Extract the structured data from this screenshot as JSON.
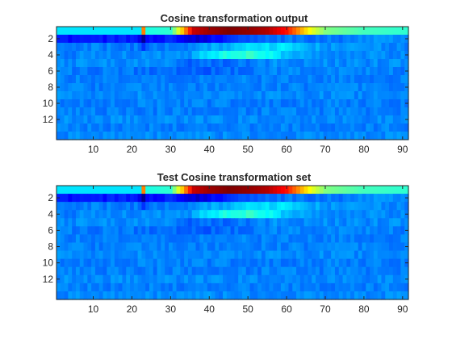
{
  "chart_data": [
    {
      "type": "heatmap",
      "title": "Cosine transformation output",
      "xlabel": "",
      "ylabel": "",
      "x_range": [
        1,
        91
      ],
      "y_range": [
        1,
        14
      ],
      "x_ticks": [
        10,
        20,
        30,
        40,
        50,
        60,
        70,
        80,
        90
      ],
      "y_ticks": [
        2,
        4,
        6,
        8,
        10,
        12
      ],
      "colormap": "jet",
      "row_values": [
        {
          "row": 1,
          "x": [
            1,
            22,
            23,
            24,
            30,
            36,
            40,
            45,
            50,
            55,
            60,
            63,
            66,
            70,
            80,
            91
          ],
          "v": [
            0.35,
            0.35,
            0.75,
            0.4,
            0.42,
            0.93,
            0.97,
            1.0,
            0.98,
            0.95,
            0.86,
            0.74,
            0.62,
            0.5,
            0.44,
            0.42
          ]
        },
        {
          "row": 2,
          "x": [
            1,
            10,
            18,
            22,
            23,
            24,
            30,
            34,
            36,
            40,
            50,
            60,
            70,
            80,
            91
          ],
          "v": [
            0.14,
            0.15,
            0.15,
            0.12,
            0.02,
            0.13,
            0.16,
            0.12,
            0.08,
            0.12,
            0.2,
            0.24,
            0.24,
            0.26,
            0.26
          ]
        },
        {
          "row": 3,
          "x": [
            1,
            10,
            22,
            23,
            24,
            35,
            40,
            50,
            60,
            64,
            70,
            91
          ],
          "v": [
            0.24,
            0.25,
            0.24,
            0.15,
            0.24,
            0.25,
            0.28,
            0.33,
            0.35,
            0.31,
            0.27,
            0.26
          ]
        },
        {
          "row": 4,
          "x": [
            1,
            20,
            35,
            38,
            45,
            52,
            56,
            60,
            70,
            91
          ],
          "v": [
            0.25,
            0.26,
            0.27,
            0.34,
            0.4,
            0.42,
            0.38,
            0.3,
            0.27,
            0.26
          ]
        },
        {
          "row": 5,
          "x": [
            1,
            30,
            36,
            40,
            50,
            58,
            65,
            91
          ],
          "v": [
            0.26,
            0.26,
            0.22,
            0.23,
            0.24,
            0.27,
            0.26,
            0.26
          ]
        },
        {
          "row": 6,
          "x": [
            1,
            35,
            40,
            50,
            60,
            91
          ],
          "v": [
            0.25,
            0.23,
            0.22,
            0.24,
            0.26,
            0.25
          ]
        },
        {
          "row": 7,
          "x": [
            1,
            91
          ],
          "v": [
            0.25,
            0.25
          ]
        },
        {
          "row": 8,
          "x": [
            1,
            91
          ],
          "v": [
            0.25,
            0.25
          ]
        },
        {
          "row": 9,
          "x": [
            1,
            91
          ],
          "v": [
            0.26,
            0.26
          ]
        },
        {
          "row": 10,
          "x": [
            1,
            91
          ],
          "v": [
            0.25,
            0.25
          ]
        },
        {
          "row": 11,
          "x": [
            1,
            91
          ],
          "v": [
            0.25,
            0.25
          ]
        },
        {
          "row": 12,
          "x": [
            1,
            91
          ],
          "v": [
            0.26,
            0.26
          ]
        },
        {
          "row": 13,
          "x": [
            1,
            91
          ],
          "v": [
            0.25,
            0.25
          ]
        },
        {
          "row": 14,
          "x": [
            1,
            91
          ],
          "v": [
            0.26,
            0.26
          ]
        }
      ]
    },
    {
      "type": "heatmap",
      "title": "Test Cosine transformation set",
      "xlabel": "",
      "ylabel": "",
      "x_range": [
        1,
        91
      ],
      "y_range": [
        1,
        14
      ],
      "x_ticks": [
        10,
        20,
        30,
        40,
        50,
        60,
        70,
        80,
        90
      ],
      "y_ticks": [
        2,
        4,
        6,
        8,
        10,
        12
      ],
      "colormap": "jet",
      "row_values": [
        {
          "row": 1,
          "x": [
            1,
            22,
            23,
            24,
            30,
            36,
            40,
            45,
            50,
            55,
            60,
            63,
            66,
            70,
            80,
            91
          ],
          "v": [
            0.35,
            0.35,
            0.75,
            0.4,
            0.42,
            0.93,
            0.97,
            1.0,
            0.98,
            0.95,
            0.86,
            0.74,
            0.62,
            0.5,
            0.44,
            0.42
          ]
        },
        {
          "row": 2,
          "x": [
            1,
            10,
            18,
            22,
            23,
            24,
            30,
            34,
            36,
            40,
            50,
            60,
            70,
            80,
            91
          ],
          "v": [
            0.14,
            0.15,
            0.15,
            0.12,
            0.02,
            0.13,
            0.16,
            0.12,
            0.08,
            0.12,
            0.2,
            0.24,
            0.24,
            0.26,
            0.26
          ]
        },
        {
          "row": 3,
          "x": [
            1,
            10,
            22,
            23,
            24,
            35,
            40,
            50,
            60,
            64,
            70,
            91
          ],
          "v": [
            0.24,
            0.25,
            0.24,
            0.15,
            0.24,
            0.25,
            0.28,
            0.33,
            0.35,
            0.31,
            0.27,
            0.26
          ]
        },
        {
          "row": 4,
          "x": [
            1,
            20,
            35,
            38,
            45,
            52,
            56,
            60,
            70,
            91
          ],
          "v": [
            0.25,
            0.26,
            0.27,
            0.34,
            0.4,
            0.42,
            0.38,
            0.3,
            0.27,
            0.26
          ]
        },
        {
          "row": 5,
          "x": [
            1,
            30,
            36,
            40,
            50,
            58,
            65,
            91
          ],
          "v": [
            0.26,
            0.26,
            0.22,
            0.23,
            0.24,
            0.27,
            0.26,
            0.26
          ]
        },
        {
          "row": 6,
          "x": [
            1,
            35,
            40,
            50,
            60,
            91
          ],
          "v": [
            0.25,
            0.23,
            0.22,
            0.24,
            0.26,
            0.25
          ]
        },
        {
          "row": 7,
          "x": [
            1,
            91
          ],
          "v": [
            0.25,
            0.25
          ]
        },
        {
          "row": 8,
          "x": [
            1,
            91
          ],
          "v": [
            0.25,
            0.25
          ]
        },
        {
          "row": 9,
          "x": [
            1,
            91
          ],
          "v": [
            0.26,
            0.26
          ]
        },
        {
          "row": 10,
          "x": [
            1,
            91
          ],
          "v": [
            0.25,
            0.25
          ]
        },
        {
          "row": 11,
          "x": [
            1,
            91
          ],
          "v": [
            0.25,
            0.25
          ]
        },
        {
          "row": 12,
          "x": [
            1,
            91
          ],
          "v": [
            0.26,
            0.26
          ]
        },
        {
          "row": 13,
          "x": [
            1,
            91
          ],
          "v": [
            0.25,
            0.25
          ]
        },
        {
          "row": 14,
          "x": [
            1,
            91
          ],
          "v": [
            0.26,
            0.26
          ]
        }
      ]
    }
  ]
}
